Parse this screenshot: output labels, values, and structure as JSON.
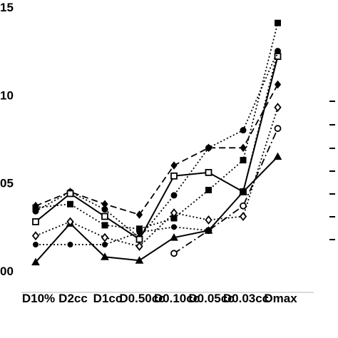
{
  "chart_data": {
    "type": "line",
    "categories": [
      "D10%",
      "D2cc",
      "D1cc",
      "D0.50cc",
      "D0.10cc",
      "D0.05cc",
      "D0.03cc",
      "Dmax"
    ],
    "y_tick_labels": [
      "00",
      "05",
      "10",
      "15"
    ],
    "y_tick_values": [
      1.0,
      1.05,
      1.1,
      1.15
    ],
    "ylim": [
      1.0,
      1.15
    ],
    "grid": false,
    "legend": "none",
    "series": [
      {
        "marker": "filled-square",
        "line": "dotted",
        "values": [
          1.036,
          1.038,
          1.026,
          1.024,
          1.03,
          1.046,
          1.063,
          1.141
        ]
      },
      {
        "marker": "filled-circle",
        "line": "dotted",
        "values": [
          1.034,
          1.045,
          1.035,
          1.019,
          1.043,
          1.07,
          1.08,
          1.125
        ]
      },
      {
        "marker": "filled-diamond",
        "line": "dashed",
        "values": [
          1.037,
          1.045,
          1.038,
          1.032,
          1.06,
          1.07,
          1.07,
          1.106
        ]
      },
      {
        "marker": "filled-triangle",
        "line": "solid",
        "values": [
          1.005,
          1.027,
          1.008,
          1.006,
          1.019,
          1.023,
          1.045,
          1.065
        ]
      },
      {
        "marker": "open-square",
        "line": "solid",
        "values": [
          1.028,
          1.044,
          1.031,
          1.018,
          1.054,
          1.056,
          1.045,
          1.122
        ]
      },
      {
        "marker": "open-diamond",
        "line": "dotted",
        "values": [
          1.02,
          1.028,
          1.019,
          1.014,
          1.033,
          1.029,
          1.031,
          1.093
        ]
      },
      {
        "marker": "open-circle",
        "line": "dash-dot",
        "values": [
          null,
          null,
          null,
          null,
          1.01,
          1.023,
          1.037,
          1.081
        ]
      },
      {
        "marker": "filled-circle-small",
        "line": "dotted",
        "values": [
          1.015,
          1.015,
          1.015,
          1.022,
          1.025,
          1.023,
          1.045,
          1.125
        ]
      }
    ]
  }
}
